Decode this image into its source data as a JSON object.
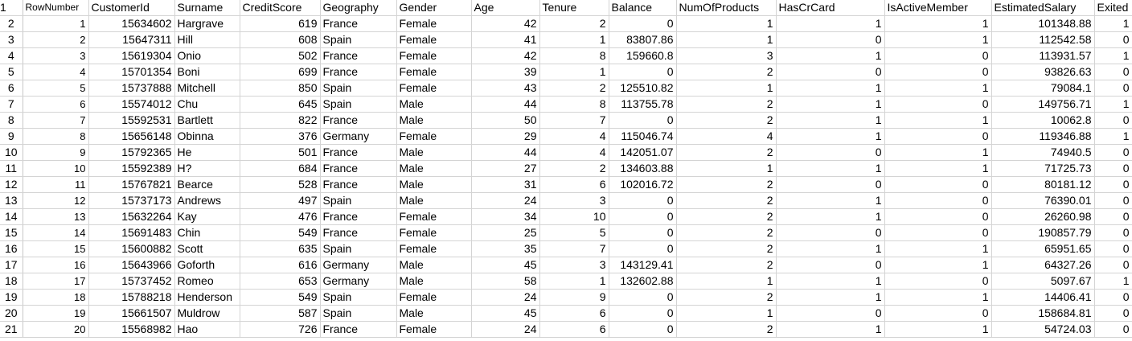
{
  "headers": [
    "RowNumber",
    "CustomerId",
    "Surname",
    "CreditScore",
    "Geography",
    "Gender",
    "Age",
    "Tenure",
    "Balance",
    "NumOfProducts",
    "HasCrCard",
    "IsActiveMember",
    "EstimatedSalary",
    "Exited"
  ],
  "rows": [
    [
      "1",
      "15634602",
      "Hargrave",
      "619",
      "France",
      "Female",
      "42",
      "2",
      "0",
      "1",
      "1",
      "1",
      "101348.88",
      "1"
    ],
    [
      "2",
      "15647311",
      "Hill",
      "608",
      "Spain",
      "Female",
      "41",
      "1",
      "83807.86",
      "1",
      "0",
      "1",
      "112542.58",
      "0"
    ],
    [
      "3",
      "15619304",
      "Onio",
      "502",
      "France",
      "Female",
      "42",
      "8",
      "159660.8",
      "3",
      "1",
      "0",
      "113931.57",
      "1"
    ],
    [
      "4",
      "15701354",
      "Boni",
      "699",
      "France",
      "Female",
      "39",
      "1",
      "0",
      "2",
      "0",
      "0",
      "93826.63",
      "0"
    ],
    [
      "5",
      "15737888",
      "Mitchell",
      "850",
      "Spain",
      "Female",
      "43",
      "2",
      "125510.82",
      "1",
      "1",
      "1",
      "79084.1",
      "0"
    ],
    [
      "6",
      "15574012",
      "Chu",
      "645",
      "Spain",
      "Male",
      "44",
      "8",
      "113755.78",
      "2",
      "1",
      "0",
      "149756.71",
      "1"
    ],
    [
      "7",
      "15592531",
      "Bartlett",
      "822",
      "France",
      "Male",
      "50",
      "7",
      "0",
      "2",
      "1",
      "1",
      "10062.8",
      "0"
    ],
    [
      "8",
      "15656148",
      "Obinna",
      "376",
      "Germany",
      "Female",
      "29",
      "4",
      "115046.74",
      "4",
      "1",
      "0",
      "119346.88",
      "1"
    ],
    [
      "9",
      "15792365",
      "He",
      "501",
      "France",
      "Male",
      "44",
      "4",
      "142051.07",
      "2",
      "0",
      "1",
      "74940.5",
      "0"
    ],
    [
      "10",
      "15592389",
      "H?",
      "684",
      "France",
      "Male",
      "27",
      "2",
      "134603.88",
      "1",
      "1",
      "1",
      "71725.73",
      "0"
    ],
    [
      "11",
      "15767821",
      "Bearce",
      "528",
      "France",
      "Male",
      "31",
      "6",
      "102016.72",
      "2",
      "0",
      "0",
      "80181.12",
      "0"
    ],
    [
      "12",
      "15737173",
      "Andrews",
      "497",
      "Spain",
      "Male",
      "24",
      "3",
      "0",
      "2",
      "1",
      "0",
      "76390.01",
      "0"
    ],
    [
      "13",
      "15632264",
      "Kay",
      "476",
      "France",
      "Female",
      "34",
      "10",
      "0",
      "2",
      "1",
      "0",
      "26260.98",
      "0"
    ],
    [
      "14",
      "15691483",
      "Chin",
      "549",
      "France",
      "Female",
      "25",
      "5",
      "0",
      "2",
      "0",
      "0",
      "190857.79",
      "0"
    ],
    [
      "15",
      "15600882",
      "Scott",
      "635",
      "Spain",
      "Female",
      "35",
      "7",
      "0",
      "2",
      "1",
      "1",
      "65951.65",
      "0"
    ],
    [
      "16",
      "15643966",
      "Goforth",
      "616",
      "Germany",
      "Male",
      "45",
      "3",
      "143129.41",
      "2",
      "0",
      "1",
      "64327.26",
      "0"
    ],
    [
      "17",
      "15737452",
      "Romeo",
      "653",
      "Germany",
      "Male",
      "58",
      "1",
      "132602.88",
      "1",
      "1",
      "0",
      "5097.67",
      "1"
    ],
    [
      "18",
      "15788218",
      "Henderson",
      "549",
      "Spain",
      "Female",
      "24",
      "9",
      "0",
      "2",
      "1",
      "1",
      "14406.41",
      "0"
    ],
    [
      "19",
      "15661507",
      "Muldrow",
      "587",
      "Spain",
      "Male",
      "45",
      "6",
      "0",
      "1",
      "0",
      "0",
      "158684.81",
      "0"
    ],
    [
      "20",
      "15568982",
      "Hao",
      "726",
      "France",
      "Female",
      "24",
      "6",
      "0",
      "2",
      "1",
      "1",
      "54724.03",
      "0"
    ]
  ]
}
